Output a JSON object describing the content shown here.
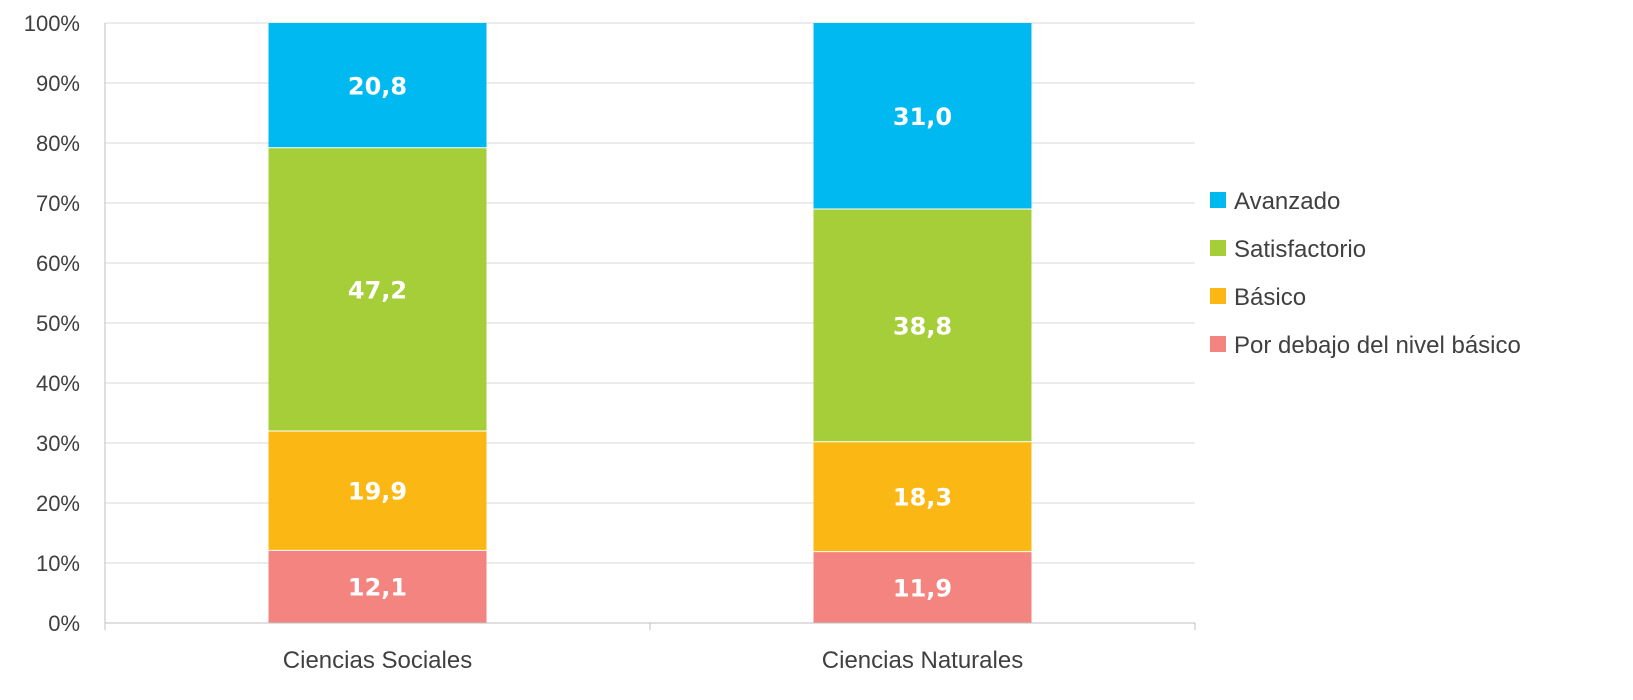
{
  "chart_data": {
    "type": "bar",
    "stacked": true,
    "categories": [
      "Ciencias Sociales",
      "Ciencias Naturales"
    ],
    "series": [
      {
        "name": "Por debajo del nivel básico",
        "color": "#F4847F",
        "values": [
          12.1,
          11.9
        ],
        "labels": [
          "12,1",
          "11,9"
        ]
      },
      {
        "name": "Básico",
        "color": "#FBB814",
        "values": [
          19.9,
          18.3
        ],
        "labels": [
          "19,9",
          "18,3"
        ]
      },
      {
        "name": "Satisfactorio",
        "color": "#A6CE39",
        "values": [
          47.2,
          38.8
        ],
        "labels": [
          "47,2",
          "38,8"
        ]
      },
      {
        "name": "Avanzado",
        "color": "#00B9F1",
        "values": [
          20.8,
          31.0
        ],
        "labels": [
          "20,8",
          "31,0"
        ]
      }
    ],
    "ylim": [
      0,
      100
    ],
    "yticks": [
      "0%",
      "10%",
      "20%",
      "30%",
      "40%",
      "50%",
      "60%",
      "70%",
      "80%",
      "90%",
      "100%"
    ],
    "grid": true,
    "legend_position": "right",
    "legend_order": [
      "Avanzado",
      "Satisfactorio",
      "Básico",
      "Por debajo del nivel básico"
    ]
  }
}
